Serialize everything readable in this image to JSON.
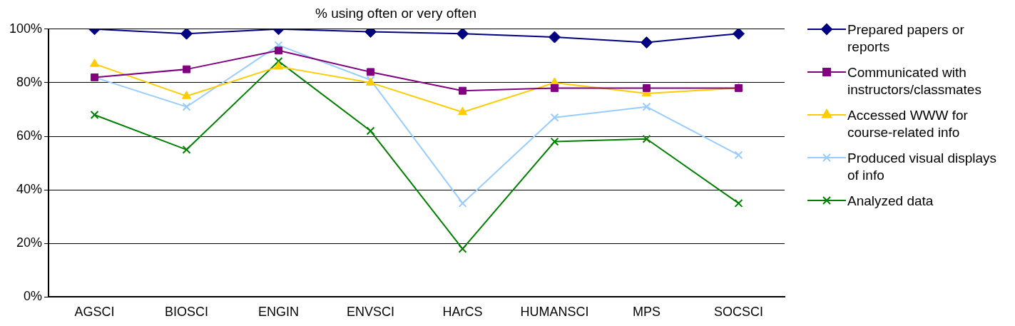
{
  "chart_data": {
    "type": "line",
    "subtitle": "% using often or very often",
    "categories": [
      "AGSCI",
      "BIOSCI",
      "ENGIN",
      "ENVSCI",
      "HArCS",
      "HUMANSCI",
      "MPS",
      "SOCSCI"
    ],
    "series": [
      {
        "name": "Prepared papers or reports",
        "color": "#000080",
        "marker": "diamond",
        "values": [
          100,
          98.3,
          100,
          99,
          98.3,
          97,
          95,
          98.3
        ]
      },
      {
        "name": "Communicated with instructors/classmates",
        "color": "#800080",
        "marker": "square",
        "values": [
          82,
          85,
          92,
          84,
          77,
          78,
          78,
          78
        ]
      },
      {
        "name": "Accessed WWW for course-related info",
        "color": "#ffcc00",
        "marker": "triangle",
        "values": [
          87,
          75,
          86,
          80,
          69,
          80,
          76,
          78
        ]
      },
      {
        "name": "Produced visual displays of info",
        "color": "#99ccff",
        "marker": "cross",
        "values": [
          82,
          71,
          94,
          81,
          35,
          67,
          71,
          53
        ]
      },
      {
        "name": "Analyzed data",
        "color": "#008000",
        "marker": "cross",
        "values": [
          68,
          55,
          88,
          62,
          18,
          58,
          59,
          35
        ]
      }
    ],
    "ylim": [
      0,
      100
    ],
    "yticks": [
      {
        "value": 0,
        "label": "0%"
      },
      {
        "value": 20,
        "label": "20%"
      },
      {
        "value": 40,
        "label": "40%"
      },
      {
        "value": 60,
        "label": "60%"
      },
      {
        "value": 80,
        "label": "80%"
      },
      {
        "value": 100,
        "label": "100%"
      }
    ],
    "grid": "y",
    "legend": "right"
  }
}
